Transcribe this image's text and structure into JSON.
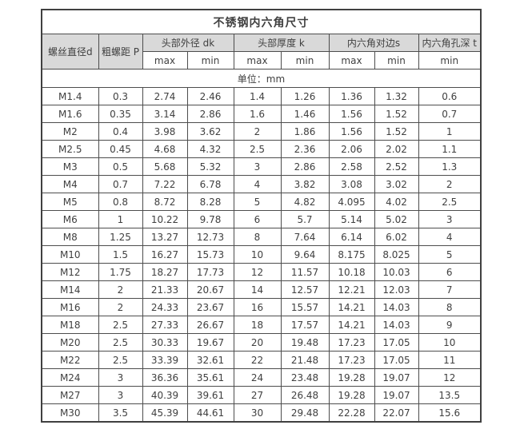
{
  "table": {
    "title": "不锈钢内六角尺寸",
    "unit_note": "单位：mm",
    "header": {
      "screw_diameter": "螺丝直径d",
      "coarse_pitch": "粗螺距 P",
      "groups": [
        {
          "label": "头部外径 dk",
          "subs": [
            "max",
            "min"
          ]
        },
        {
          "label": "头部厚度 k",
          "subs": [
            "max",
            "min"
          ]
        },
        {
          "label": "内六角对边s",
          "subs": [
            "max",
            "min"
          ]
        },
        {
          "label": "内六角孔深 t",
          "subs": [
            "min"
          ]
        }
      ]
    },
    "rows": [
      [
        "M1.4",
        "0.3",
        "2.74",
        "2.46",
        "1.4",
        "1.26",
        "1.36",
        "1.32",
        "0.6"
      ],
      [
        "M1.6",
        "0.35",
        "3.14",
        "2.86",
        "1.6",
        "1.46",
        "1.56",
        "1.52",
        "0.7"
      ],
      [
        "M2",
        "0.4",
        "3.98",
        "3.62",
        "2",
        "1.86",
        "1.56",
        "1.52",
        "1"
      ],
      [
        "M2.5",
        "0.45",
        "4.68",
        "4.32",
        "2.5",
        "2.36",
        "2.06",
        "2.02",
        "1.1"
      ],
      [
        "M3",
        "0.5",
        "5.68",
        "5.32",
        "3",
        "2.86",
        "2.58",
        "2.52",
        "1.3"
      ],
      [
        "M4",
        "0.7",
        "7.22",
        "6.78",
        "4",
        "3.82",
        "3.08",
        "3.02",
        "2"
      ],
      [
        "M5",
        "0.8",
        "8.72",
        "8.28",
        "5",
        "4.82",
        "4.095",
        "4.02",
        "2.5"
      ],
      [
        "M6",
        "1",
        "10.22",
        "9.78",
        "6",
        "5.7",
        "5.14",
        "5.02",
        "3"
      ],
      [
        "M8",
        "1.25",
        "13.27",
        "12.73",
        "8",
        "7.64",
        "6.14",
        "6.02",
        "4"
      ],
      [
        "M10",
        "1.5",
        "16.27",
        "15.73",
        "10",
        "9.64",
        "8.175",
        "8.025",
        "5"
      ],
      [
        "M12",
        "1.75",
        "18.27",
        "17.73",
        "12",
        "11.57",
        "10.18",
        "10.03",
        "6"
      ],
      [
        "M14",
        "2",
        "21.33",
        "20.67",
        "14",
        "12.57",
        "12.21",
        "12.03",
        "7"
      ],
      [
        "M16",
        "2",
        "24.33",
        "23.67",
        "16",
        "15.57",
        "14.21",
        "14.03",
        "8"
      ],
      [
        "M18",
        "2.5",
        "27.33",
        "26.67",
        "18",
        "17.57",
        "14.21",
        "14.03",
        "9"
      ],
      [
        "M20",
        "2.5",
        "30.33",
        "19.67",
        "20",
        "19.48",
        "17.23",
        "17.05",
        "10"
      ],
      [
        "M22",
        "2.5",
        "33.39",
        "32.61",
        "22",
        "21.48",
        "17.23",
        "17.05",
        "11"
      ],
      [
        "M24",
        "3",
        "36.36",
        "35.61",
        "24",
        "23.48",
        "19.28",
        "19.07",
        "12"
      ],
      [
        "M27",
        "3",
        "40.39",
        "39.61",
        "27",
        "26.48",
        "19.28",
        "19.07",
        "13.5"
      ],
      [
        "M30",
        "3.5",
        "45.39",
        "44.61",
        "30",
        "29.48",
        "22.28",
        "22.07",
        "15.6"
      ]
    ]
  },
  "colors": {
    "header_bg": "#d9d9d9",
    "border": "#4d4d4d",
    "text": "#404040",
    "page_bg": "#ffffff"
  }
}
